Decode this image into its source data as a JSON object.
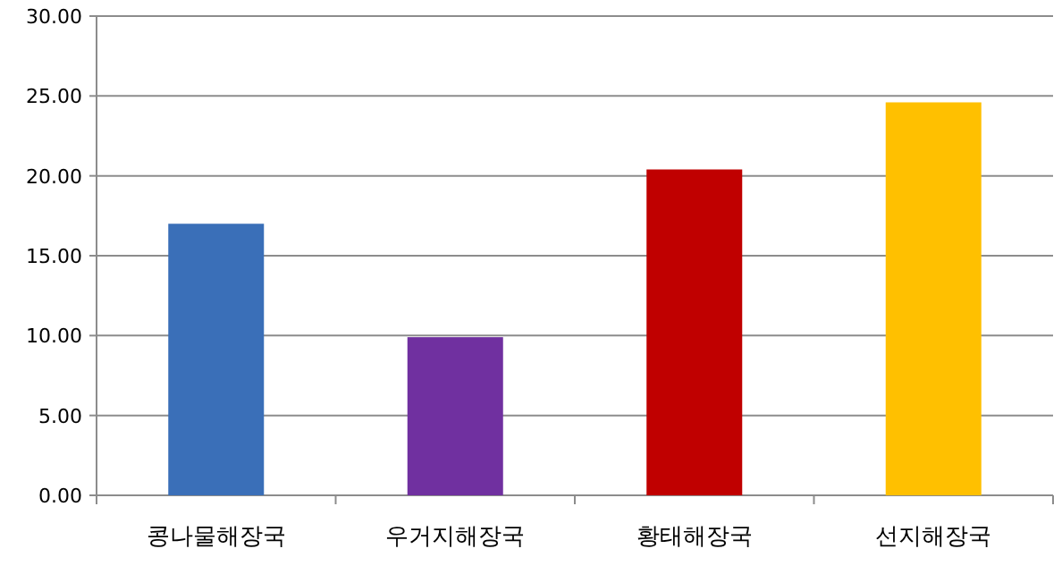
{
  "chart_data": {
    "type": "bar",
    "categories": [
      "콩나물해장국",
      "우거지해장국",
      "황태해장국",
      "선지해장국"
    ],
    "values": [
      17.0,
      9.9,
      20.4,
      24.6
    ],
    "colors": [
      "#3a6fb8",
      "#7030a0",
      "#c00000",
      "#ffc000"
    ],
    "ylim": [
      0,
      30
    ],
    "yticks": [
      {
        "value": 0,
        "label": "0.00"
      },
      {
        "value": 5,
        "label": "5.00"
      },
      {
        "value": 10,
        "label": "10.00"
      },
      {
        "value": 15,
        "label": "15.00"
      },
      {
        "value": 20,
        "label": "20.00"
      },
      {
        "value": 25,
        "label": "25.00"
      },
      {
        "value": 30,
        "label": "30.00"
      }
    ],
    "grid": "y"
  }
}
